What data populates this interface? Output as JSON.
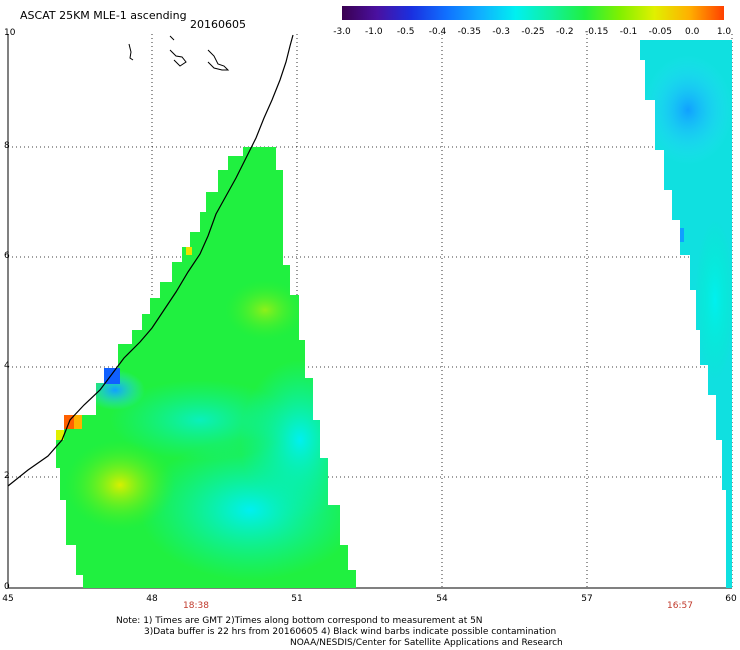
{
  "header": {
    "title": "ASCAT 25KM MLE-1 ascending",
    "date": "20160605"
  },
  "colorbar": {
    "labels": [
      "-3.0",
      "-1.0",
      "-0.5",
      "-0.4",
      "-0.35",
      "-0.3",
      "-0.25",
      "-0.2",
      "-0.15",
      "-0.1",
      "-0.05",
      "0.0",
      "1.0"
    ],
    "colors": [
      "#3a0050",
      "#4a10a0",
      "#1a30e0",
      "#1070ff",
      "#10b0ff",
      "#00f0f0",
      "#10f0a0",
      "#20f040",
      "#80f000",
      "#e0f000",
      "#ffb000",
      "#ff4000"
    ]
  },
  "axes": {
    "x_ticks": [
      "45",
      "48",
      "51",
      "54",
      "57",
      "60"
    ],
    "y_ticks": [
      "0",
      "2",
      "4",
      "6",
      "8",
      "10"
    ],
    "pass_times": [
      {
        "label": "18:38",
        "lon": 48.8
      },
      {
        "label": "16:57",
        "lon": 58.7
      }
    ]
  },
  "notes": [
    "Note: 1) Times are GMT 2)Times along bottom correspond to measurement at 5N",
    "3)Data buffer is 22 hrs from 20160605 4) Black wind barbs indicate possible contamination",
    "NOAA/NESDIS/Center for Satellite Applications and Research"
  ],
  "colors": {
    "swath_green": "#20f040",
    "swath_cyan": "#00f0f0",
    "swath_blue": "#10a0ff",
    "swath_orange": "#ff8000",
    "time_label": "#c0392b"
  }
}
